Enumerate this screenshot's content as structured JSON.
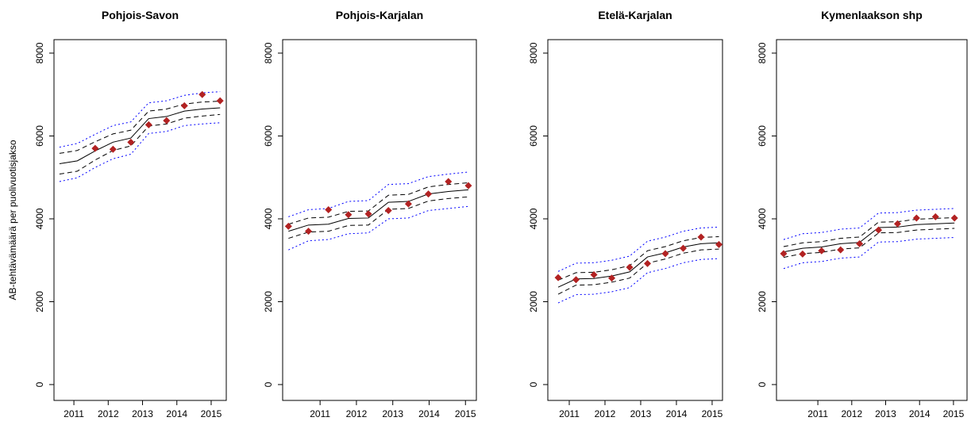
{
  "chart_data": [
    {
      "type": "line",
      "title": "Pohjois-Savon",
      "y_label": "AB-tehtävämäärä per puolivuotisjakso",
      "x": [
        2010.58,
        2011.1,
        2011.62,
        2012.14,
        2012.66,
        2013.18,
        2013.7,
        2014.22,
        2014.74,
        2015.26
      ],
      "xlim": [
        2010.42,
        2015.44
      ],
      "xticks": [
        2011,
        2012,
        2013,
        2014,
        2015
      ],
      "ylim": [
        -383,
        8325
      ],
      "yticks": [
        0,
        2000,
        4000,
        6000,
        8000
      ],
      "series": [
        {
          "color": "#0000ff",
          "line_style": "dotted",
          "values": [
            5730,
            5820,
            6040,
            6250,
            6340,
            6800,
            6850,
            6980,
            7040,
            7070
          ]
        },
        {
          "color": "#0000ff",
          "line_style": "dotted",
          "values": [
            4900,
            4990,
            5240,
            5450,
            5560,
            6060,
            6110,
            6250,
            6290,
            6320
          ]
        },
        {
          "color": "#000000",
          "line_style": "dashed",
          "values": [
            5580,
            5650,
            5860,
            6050,
            6140,
            6600,
            6650,
            6770,
            6820,
            6840
          ]
        },
        {
          "color": "#000000",
          "line_style": "dashed",
          "values": [
            5080,
            5150,
            5420,
            5650,
            5760,
            6240,
            6290,
            6430,
            6480,
            6520
          ]
        },
        {
          "color": "#000000",
          "line_style": "solid",
          "values": [
            5330,
            5400,
            5640,
            5850,
            5950,
            6420,
            6470,
            6600,
            6650,
            6680
          ]
        },
        {
          "color": "#b22222",
          "marker": "diamond",
          "values": [
            null,
            null,
            5700,
            5680,
            5850,
            6270,
            6370,
            6730,
            7000,
            6850
          ]
        }
      ]
    },
    {
      "type": "line",
      "title": "Pohjois-Karjalan",
      "x": [
        2010.13,
        2010.68,
        2011.23,
        2011.78,
        2012.33,
        2012.88,
        2013.43,
        2013.98,
        2014.53,
        2015.08
      ],
      "xlim": [
        2009.97,
        2015.3
      ],
      "xticks": [
        2011,
        2012,
        2013,
        2014,
        2015
      ],
      "ylim": [
        -383,
        8325
      ],
      "yticks": [
        0,
        2000,
        4000,
        6000,
        8000
      ],
      "series": [
        {
          "color": "#0000ff",
          "line_style": "dotted",
          "values": [
            4050,
            4220,
            4250,
            4420,
            4440,
            4830,
            4850,
            5020,
            5080,
            5130
          ]
        },
        {
          "color": "#0000ff",
          "line_style": "dotted",
          "values": [
            3250,
            3470,
            3500,
            3640,
            3660,
            4000,
            4020,
            4200,
            4250,
            4300
          ]
        },
        {
          "color": "#000000",
          "line_style": "dashed",
          "values": [
            3870,
            4020,
            4040,
            4180,
            4190,
            4570,
            4590,
            4770,
            4830,
            4870
          ]
        },
        {
          "color": "#000000",
          "line_style": "dashed",
          "values": [
            3530,
            3680,
            3700,
            3840,
            3850,
            4230,
            4250,
            4430,
            4490,
            4530
          ]
        },
        {
          "color": "#000000",
          "line_style": "solid",
          "values": [
            3700,
            3850,
            3870,
            4010,
            4020,
            4400,
            4420,
            4600,
            4660,
            4700
          ]
        },
        {
          "color": "#b22222",
          "marker": "diamond",
          "values": [
            3820,
            3700,
            4220,
            4100,
            4120,
            4200,
            4360,
            4600,
            4900,
            4800
          ]
        }
      ]
    },
    {
      "type": "line",
      "title": "Etelä-Karjalan",
      "x": [
        2010.69,
        2011.19,
        2011.69,
        2012.19,
        2012.69,
        2013.19,
        2013.69,
        2014.19,
        2014.69,
        2015.19
      ],
      "xlim": [
        2010.4,
        2015.29
      ],
      "xticks": [
        2011,
        2012,
        2013,
        2014,
        2015
      ],
      "ylim": [
        -383,
        8325
      ],
      "yticks": [
        0,
        2000,
        4000,
        6000,
        8000
      ],
      "series": [
        {
          "color": "#0000ff",
          "line_style": "dotted",
          "values": [
            2730,
            2930,
            2940,
            3000,
            3100,
            3460,
            3560,
            3700,
            3780,
            3800
          ]
        },
        {
          "color": "#0000ff",
          "line_style": "dotted",
          "values": [
            1970,
            2170,
            2180,
            2240,
            2340,
            2700,
            2800,
            2940,
            3020,
            3040
          ]
        },
        {
          "color": "#000000",
          "line_style": "dashed",
          "values": [
            2520,
            2700,
            2710,
            2770,
            2870,
            3230,
            3330,
            3470,
            3550,
            3570
          ]
        },
        {
          "color": "#000000",
          "line_style": "dashed",
          "values": [
            2180,
            2400,
            2410,
            2470,
            2570,
            2930,
            3030,
            3170,
            3250,
            3270
          ]
        },
        {
          "color": "#000000",
          "line_style": "solid",
          "values": [
            2350,
            2550,
            2560,
            2620,
            2720,
            3080,
            3180,
            3320,
            3400,
            3420
          ]
        },
        {
          "color": "#b22222",
          "marker": "diamond",
          "values": [
            2580,
            2530,
            2650,
            2570,
            2830,
            2920,
            3160,
            3290,
            3560,
            3380
          ]
        }
      ]
    },
    {
      "type": "line",
      "title": "Kymenlaakson shp",
      "x": [
        2009.99,
        2010.55,
        2011.11,
        2011.67,
        2012.23,
        2012.79,
        2013.35,
        2013.91,
        2014.47,
        2015.03
      ],
      "xlim": [
        2009.78,
        2015.4
      ],
      "xticks": [
        2011,
        2012,
        2013,
        2014,
        2015
      ],
      "ylim": [
        -383,
        8325
      ],
      "yticks": [
        0,
        2000,
        4000,
        6000,
        8000
      ],
      "series": [
        {
          "color": "#0000ff",
          "line_style": "dotted",
          "values": [
            3500,
            3640,
            3670,
            3750,
            3780,
            4140,
            4150,
            4210,
            4230,
            4250
          ]
        },
        {
          "color": "#0000ff",
          "line_style": "dotted",
          "values": [
            2800,
            2940,
            2970,
            3050,
            3080,
            3440,
            3450,
            3510,
            3530,
            3550
          ]
        },
        {
          "color": "#000000",
          "line_style": "dashed",
          "values": [
            3330,
            3420,
            3450,
            3530,
            3560,
            3920,
            3930,
            3990,
            4010,
            4030
          ]
        },
        {
          "color": "#000000",
          "line_style": "dashed",
          "values": [
            3070,
            3160,
            3190,
            3270,
            3300,
            3660,
            3670,
            3730,
            3750,
            3770
          ]
        },
        {
          "color": "#000000",
          "line_style": "solid",
          "values": [
            3200,
            3290,
            3320,
            3400,
            3430,
            3790,
            3800,
            3860,
            3880,
            3900
          ]
        },
        {
          "color": "#b22222",
          "marker": "diamond",
          "values": [
            3160,
            3150,
            3230,
            3250,
            3400,
            3730,
            3880,
            4020,
            4050,
            4020
          ]
        }
      ]
    }
  ]
}
